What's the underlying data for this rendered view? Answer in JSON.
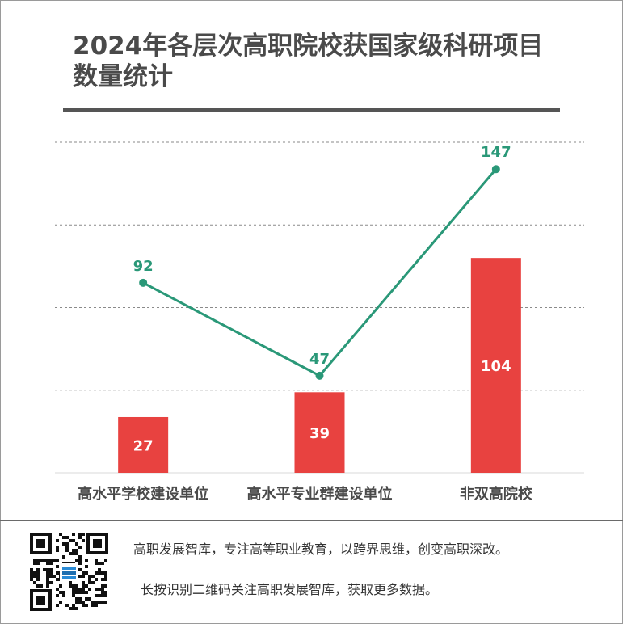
{
  "chart_data": {
    "type": "bar",
    "title": "2024年各层次高职院校获国家级科研项目数量统计",
    "title_lines": [
      "2024年各层次高职院校获国家级科研项目",
      "数量统计"
    ],
    "categories": [
      "高水平学校建设单位",
      "高水平专业群建设单位",
      "非双高院校"
    ],
    "series": [
      {
        "name": "bar",
        "type": "bar",
        "values": [
          27,
          39,
          104
        ],
        "color": "#e84240"
      },
      {
        "name": "line",
        "type": "line",
        "values": [
          92,
          47,
          147
        ],
        "color": "#2a9878"
      }
    ],
    "ylim": [
      0,
      160
    ],
    "grid": true,
    "xlabel": "",
    "ylabel": ""
  },
  "footer": {
    "line1": "高职发展智库，专注高等职业教育，以跨界思维，创变高职深改。",
    "line2": "长按识别二维码关注高职发展智库，获取更多数据。",
    "qr_icon": "qr-code-icon"
  }
}
